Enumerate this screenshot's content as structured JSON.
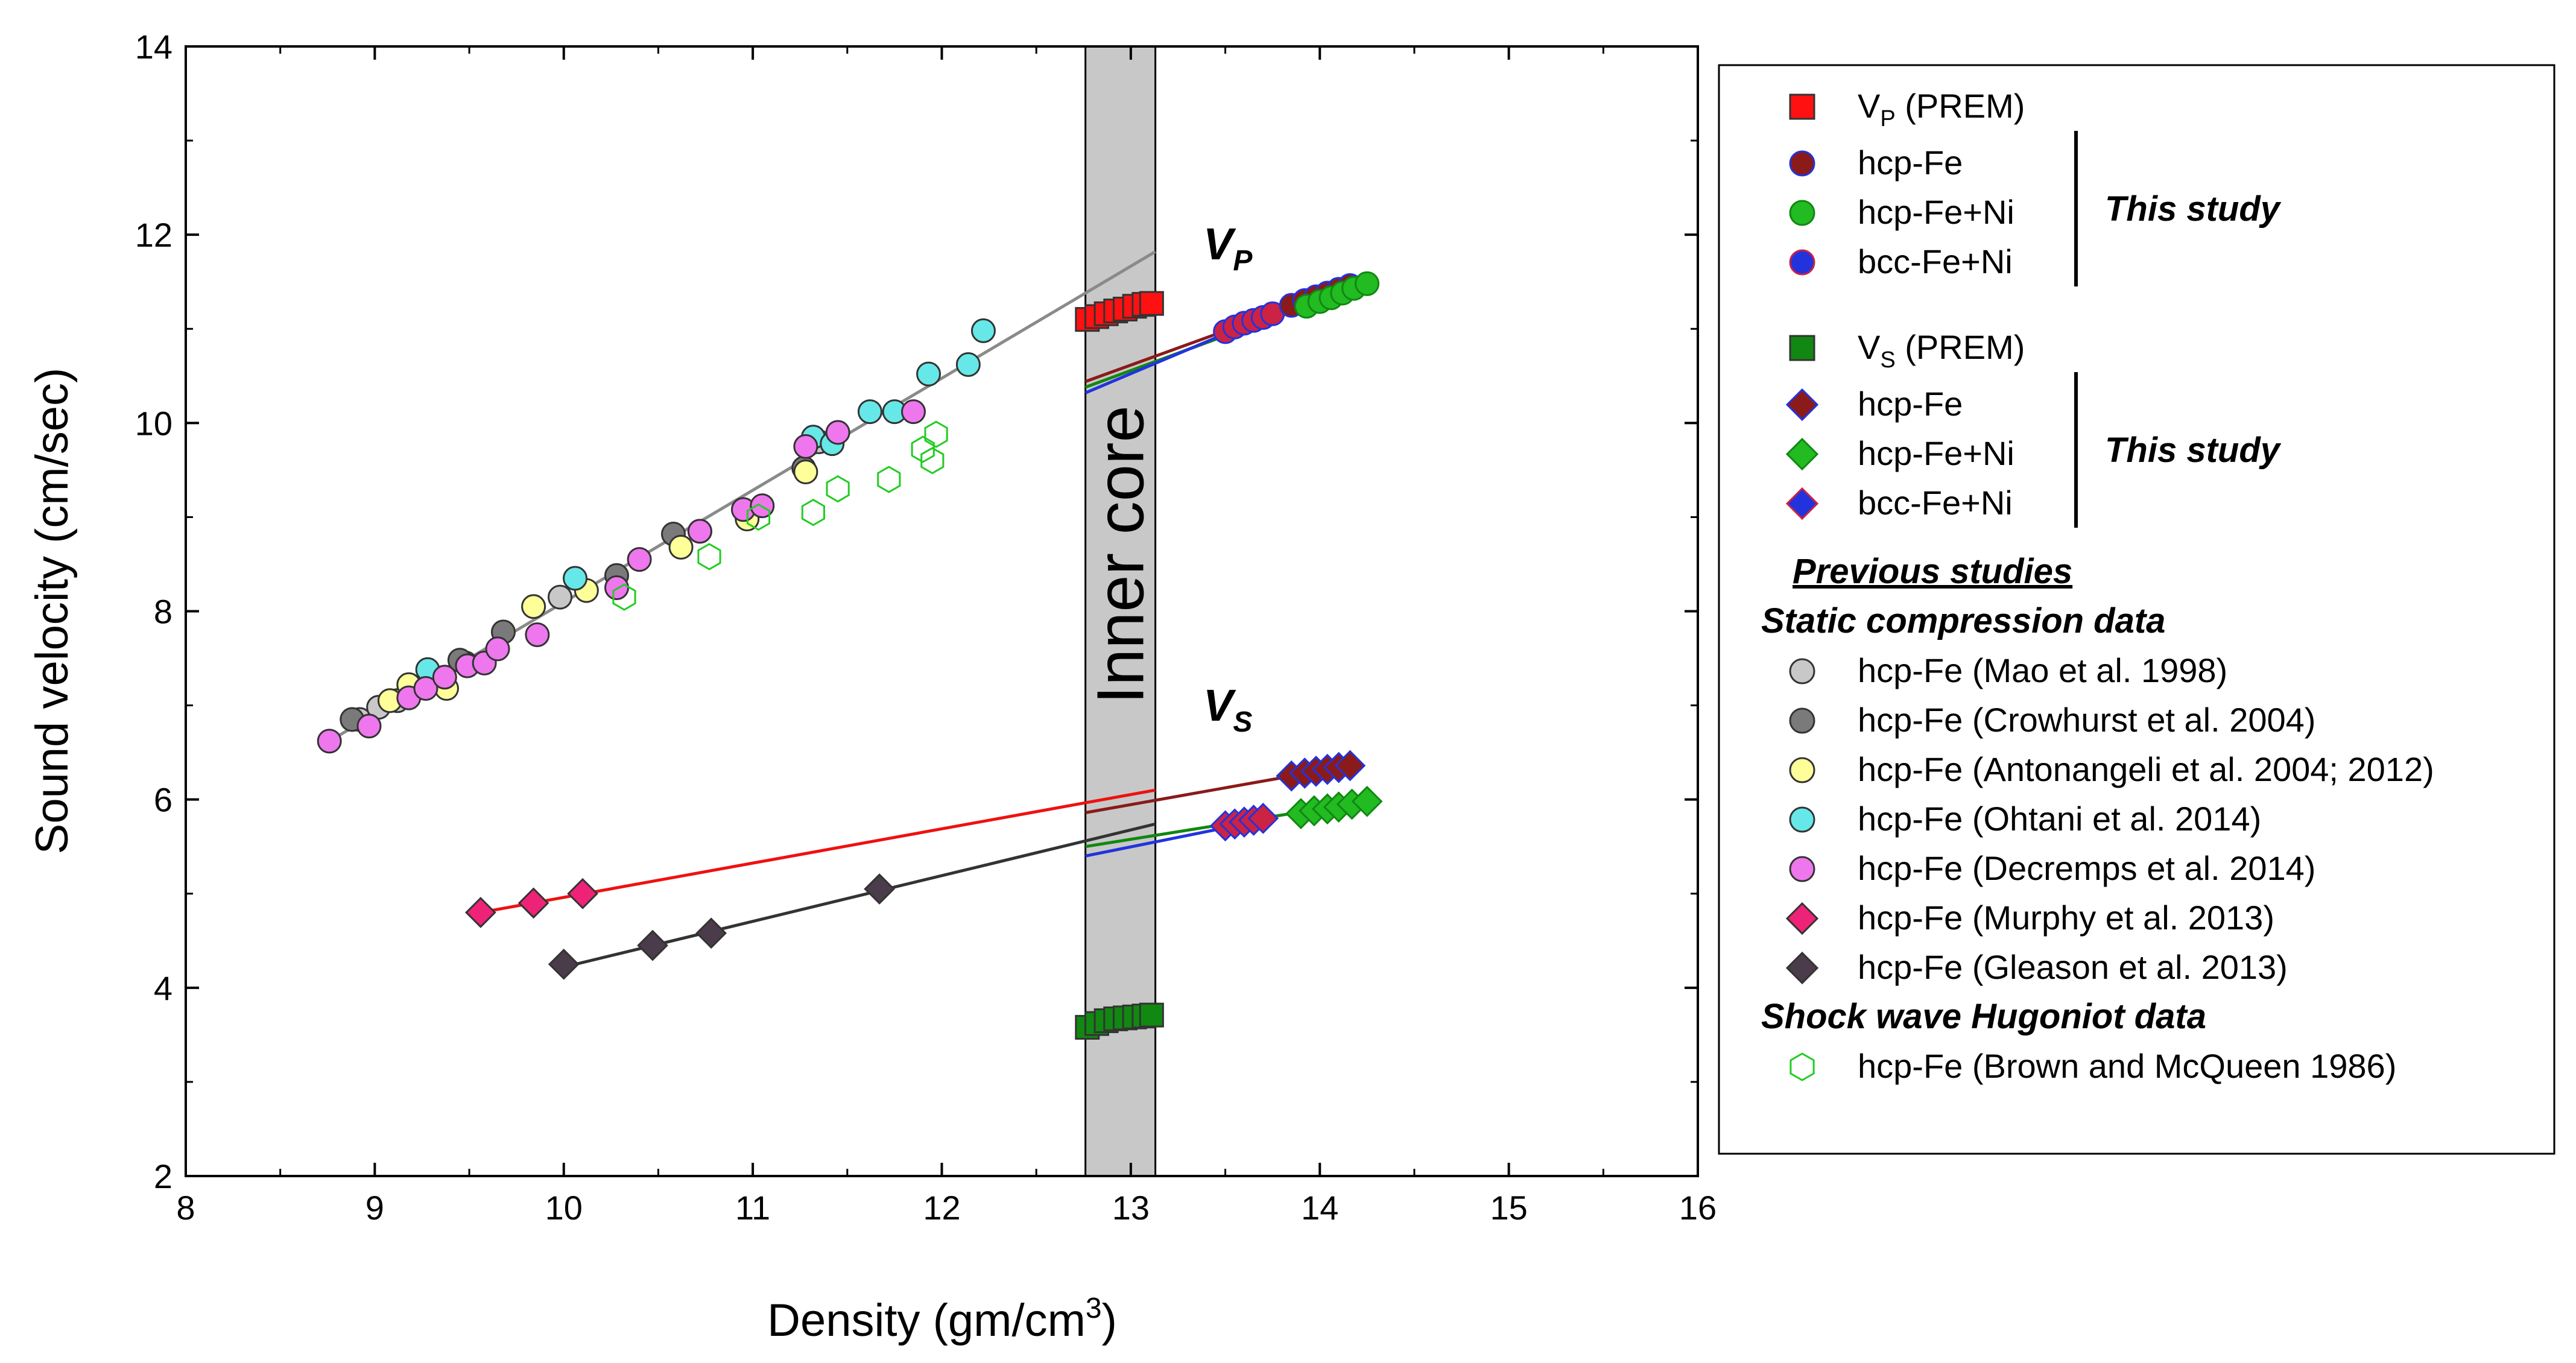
{
  "chart_data": {
    "type": "scatter",
    "xlabel_main": "Density (gm/cm",
    "xlabel_sup": "3",
    "xlabel_end": ")",
    "ylabel": "Sound velocity (cm/sec)",
    "xlim": [
      8,
      16
    ],
    "ylim": [
      2,
      14
    ],
    "xticks": [
      "8",
      "9",
      "10",
      "11",
      "12",
      "13",
      "14",
      "15",
      "16"
    ],
    "yticks": [
      "2",
      "4",
      "6",
      "8",
      "10",
      "12",
      "14"
    ],
    "band": {
      "label": "Inner core",
      "x_range": [
        12.76,
        13.13
      ],
      "color": "#c8c8c8"
    },
    "annotations": {
      "vp": {
        "main": "V",
        "sub": "P"
      },
      "vs": {
        "main": "V",
        "sub": "S"
      }
    },
    "series": [
      {
        "name": "hcp-Fe (Mao et al. 1998)",
        "marker": "circle",
        "fill": "#c8c8c8",
        "points": [
          [
            8.92,
            6.85
          ],
          [
            9.02,
            6.98
          ],
          [
            9.12,
            7.05
          ],
          [
            9.48,
            7.45
          ],
          [
            9.98,
            8.15
          ],
          [
            10.72,
            8.85
          ],
          [
            11.35,
            9.8
          ]
        ]
      },
      {
        "name": "hcp-Fe (Crowhurst et al. 2004)",
        "marker": "circle",
        "fill": "#7a7a7a",
        "points": [
          [
            8.88,
            6.85
          ],
          [
            9.45,
            7.48
          ],
          [
            9.68,
            7.78
          ],
          [
            10.28,
            8.38
          ],
          [
            10.58,
            8.82
          ],
          [
            11.27,
            9.52
          ]
        ]
      },
      {
        "name": "hcp-Fe (Antonangeli et al. 2004; 2012)",
        "marker": "circle",
        "fill": "#ffff99",
        "points": [
          [
            9.08,
            7.05
          ],
          [
            9.18,
            7.22
          ],
          [
            9.38,
            7.18
          ],
          [
            9.84,
            8.05
          ],
          [
            10.12,
            8.22
          ],
          [
            10.62,
            8.68
          ],
          [
            10.97,
            8.98
          ],
          [
            11.28,
            9.48
          ]
        ]
      },
      {
        "name": "hcp-Fe (Ohtani et al. 2014)",
        "marker": "circle",
        "fill": "#66e8e8",
        "points": [
          [
            9.28,
            7.38
          ],
          [
            10.06,
            8.35
          ],
          [
            11.32,
            9.85
          ],
          [
            11.42,
            9.78
          ],
          [
            11.62,
            10.12
          ],
          [
            11.75,
            10.12
          ],
          [
            11.93,
            10.52
          ],
          [
            12.14,
            10.62
          ],
          [
            12.22,
            10.98
          ]
        ]
      },
      {
        "name": "hcp-Fe (Decremps et al. 2014)",
        "marker": "circle",
        "fill": "#ee77ee",
        "points": [
          [
            8.76,
            6.62
          ],
          [
            8.97,
            6.78
          ],
          [
            9.18,
            7.08
          ],
          [
            9.27,
            7.18
          ],
          [
            9.37,
            7.3
          ],
          [
            9.49,
            7.42
          ],
          [
            9.58,
            7.45
          ],
          [
            9.65,
            7.6
          ],
          [
            9.86,
            7.75
          ],
          [
            10.28,
            8.25
          ],
          [
            10.4,
            8.55
          ],
          [
            10.72,
            8.85
          ],
          [
            10.95,
            9.08
          ],
          [
            11.05,
            9.12
          ],
          [
            11.28,
            9.75
          ],
          [
            11.45,
            9.9
          ],
          [
            11.85,
            10.12
          ]
        ]
      },
      {
        "name": "hcp-Fe (Murphy et al. 2013)",
        "marker": "diamond",
        "fill": "#ee2277",
        "points": [
          [
            9.56,
            4.8
          ],
          [
            9.84,
            4.9
          ],
          [
            10.1,
            5.0
          ]
        ]
      },
      {
        "name": "hcp-Fe (Gleason et al. 2013)",
        "marker": "diamond",
        "fill": "#4a3c4a",
        "points": [
          [
            10.0,
            4.25
          ],
          [
            10.47,
            4.45
          ],
          [
            10.78,
            4.58
          ],
          [
            11.67,
            5.05
          ]
        ]
      },
      {
        "name": "hcp-Fe (Brown and McQueen 1986)",
        "marker": "hexagon",
        "fill": "none",
        "stroke": "#22cc22",
        "points": [
          [
            10.32,
            8.15
          ],
          [
            10.77,
            8.58
          ],
          [
            11.03,
            9.0
          ],
          [
            11.32,
            9.05
          ],
          [
            11.45,
            9.3
          ],
          [
            11.72,
            9.4
          ],
          [
            11.9,
            9.72
          ],
          [
            11.95,
            9.6
          ],
          [
            11.97,
            9.88
          ]
        ]
      },
      {
        "name": "V_P (PREM)",
        "marker": "square",
        "fill": "#ff1111",
        "points": [
          [
            12.77,
            11.1
          ],
          [
            12.82,
            11.13
          ],
          [
            12.87,
            11.16
          ],
          [
            12.92,
            11.19
          ],
          [
            12.97,
            11.21
          ],
          [
            13.02,
            11.24
          ],
          [
            13.07,
            11.26
          ],
          [
            13.11,
            11.27
          ]
        ]
      },
      {
        "name": "V_S (PREM)",
        "marker": "square",
        "fill": "#118811",
        "points": [
          [
            12.77,
            3.58
          ],
          [
            12.82,
            3.62
          ],
          [
            12.87,
            3.65
          ],
          [
            12.92,
            3.67
          ],
          [
            12.97,
            3.68
          ],
          [
            13.02,
            3.69
          ],
          [
            13.07,
            3.7
          ],
          [
            13.11,
            3.71
          ]
        ]
      },
      {
        "name": "bcc-Fe+Ni (VP)",
        "marker": "circle",
        "fill": "#cc2244",
        "stroke": "#2233dd",
        "points": [
          [
            13.5,
            10.97
          ],
          [
            13.55,
            11.02
          ],
          [
            13.6,
            11.06
          ],
          [
            13.65,
            11.09
          ],
          [
            13.7,
            11.12
          ],
          [
            13.75,
            11.16
          ]
        ]
      },
      {
        "name": "hcp-Fe (VP)",
        "marker": "circle",
        "fill": "#8b1a1a",
        "stroke": "#2233dd",
        "points": [
          [
            13.85,
            11.25
          ],
          [
            13.92,
            11.3
          ],
          [
            13.98,
            11.34
          ],
          [
            14.04,
            11.38
          ],
          [
            14.1,
            11.42
          ],
          [
            14.16,
            11.46
          ]
        ]
      },
      {
        "name": "hcp-Fe+Ni (VP)",
        "marker": "circle",
        "fill": "#22bb22",
        "stroke": "#118811",
        "points": [
          [
            13.93,
            11.24
          ],
          [
            14.0,
            11.29
          ],
          [
            14.06,
            11.33
          ],
          [
            14.12,
            11.38
          ],
          [
            14.18,
            11.43
          ],
          [
            14.25,
            11.48
          ]
        ]
      },
      {
        "name": "bcc-Fe+Ni (VS)",
        "marker": "diamond",
        "fill": "#cc2244",
        "stroke": "#2233dd",
        "points": [
          [
            13.5,
            5.72
          ],
          [
            13.55,
            5.74
          ],
          [
            13.6,
            5.76
          ],
          [
            13.65,
            5.78
          ],
          [
            13.7,
            5.8
          ]
        ]
      },
      {
        "name": "hcp-Fe (VS)",
        "marker": "diamond",
        "fill": "#8b1a1a",
        "stroke": "#2233dd",
        "points": [
          [
            13.85,
            6.25
          ],
          [
            13.92,
            6.28
          ],
          [
            13.98,
            6.3
          ],
          [
            14.04,
            6.32
          ],
          [
            14.1,
            6.34
          ],
          [
            14.16,
            6.36
          ]
        ]
      },
      {
        "name": "hcp-Fe+Ni (VS)",
        "marker": "diamond",
        "fill": "#22bb22",
        "stroke": "#118811",
        "points": [
          [
            13.9,
            5.85
          ],
          [
            13.97,
            5.88
          ],
          [
            14.04,
            5.9
          ],
          [
            14.1,
            5.92
          ],
          [
            14.17,
            5.95
          ],
          [
            14.25,
            5.98
          ]
        ]
      }
    ],
    "fit_lines": [
      {
        "name": "previous VP fit",
        "color": "#8a8a8a",
        "from": [
          8.76,
          6.62
        ],
        "to": [
          13.13,
          11.82
        ]
      },
      {
        "name": "Murphy VS fit",
        "color": "#ee1111",
        "from": [
          9.56,
          4.8
        ],
        "to": [
          13.13,
          6.1
        ]
      },
      {
        "name": "Gleason VS fit",
        "color": "#333333",
        "from": [
          10.0,
          4.22
        ],
        "to": [
          13.13,
          5.74
        ]
      },
      {
        "name": "hcp-Fe VP fit",
        "color": "#8b1a1a",
        "from": [
          12.76,
          10.44
        ],
        "to": [
          14.16,
          11.46
        ]
      },
      {
        "name": "hcp-Fe+Ni VP fit",
        "color": "#118811",
        "from": [
          12.76,
          10.38
        ],
        "to": [
          14.25,
          11.48
        ]
      },
      {
        "name": "bcc-Fe+Ni VP fit",
        "color": "#2233dd",
        "from": [
          12.76,
          10.32
        ],
        "to": [
          13.75,
          11.16
        ]
      },
      {
        "name": "hcp-Fe VS fit",
        "color": "#8b1a1a",
        "from": [
          12.76,
          5.86
        ],
        "to": [
          14.16,
          6.36
        ]
      },
      {
        "name": "hcp-Fe+Ni VS fit",
        "color": "#118811",
        "from": [
          12.76,
          5.5
        ],
        "to": [
          14.25,
          5.98
        ]
      },
      {
        "name": "bcc-Fe+Ni VS fit",
        "color": "#2233dd",
        "from": [
          12.76,
          5.4
        ],
        "to": [
          13.75,
          5.8
        ]
      }
    ],
    "legend": {
      "position": "right",
      "groups": [
        {
          "rows": [
            {
              "marker": "square",
              "fill": "#ff1111",
              "label_main": "V",
              "label_sub": "P",
              "label_rest": " (PREM)"
            }
          ]
        },
        {
          "bracket": "This study",
          "rows": [
            {
              "marker": "circle",
              "fill": "#8b1a1a",
              "stroke": "#2233dd",
              "label": "hcp-Fe"
            },
            {
              "marker": "circle",
              "fill": "#22bb22",
              "stroke": "#118811",
              "label": "hcp-Fe+Ni"
            },
            {
              "marker": "circle",
              "fill": "#2233dd",
              "stroke": "#cc2244",
              "label": "bcc-Fe+Ni"
            }
          ]
        },
        {
          "rows": [
            {
              "marker": "square",
              "fill": "#118811",
              "label_main": "V",
              "label_sub": "S",
              "label_rest": " (PREM)"
            }
          ]
        },
        {
          "bracket": "This study",
          "rows": [
            {
              "marker": "diamond",
              "fill": "#8b1a1a",
              "stroke": "#2233dd",
              "label": "hcp-Fe"
            },
            {
              "marker": "diamond",
              "fill": "#22bb22",
              "stroke": "#118811",
              "label": "hcp-Fe+Ni"
            },
            {
              "marker": "diamond",
              "fill": "#2233dd",
              "stroke": "#cc2244",
              "label": "bcc-Fe+Ni"
            }
          ]
        }
      ],
      "previous_heading": "Previous studies",
      "static_heading": "Static compression data",
      "static_rows": [
        {
          "marker": "circle",
          "fill": "#c8c8c8",
          "label": "hcp-Fe (Mao et al. 1998)"
        },
        {
          "marker": "circle",
          "fill": "#7a7a7a",
          "label": "hcp-Fe (Crowhurst et al. 2004)"
        },
        {
          "marker": "circle",
          "fill": "#ffff99",
          "label": "hcp-Fe (Antonangeli et al. 2004; 2012)"
        },
        {
          "marker": "circle",
          "fill": "#66e8e8",
          "label": "hcp-Fe (Ohtani et al. 2014)"
        },
        {
          "marker": "circle",
          "fill": "#ee77ee",
          "label": "hcp-Fe (Decremps et al. 2014)"
        },
        {
          "marker": "diamond",
          "fill": "#ee2277",
          "label": "hcp-Fe (Murphy et al. 2013)"
        },
        {
          "marker": "diamond",
          "fill": "#4a3c4a",
          "label": "hcp-Fe (Gleason et al. 2013)"
        }
      ],
      "shock_heading": "Shock wave Hugoniot data",
      "shock_rows": [
        {
          "marker": "hexagon",
          "fill": "none",
          "stroke": "#22cc22",
          "label": "hcp-Fe (Brown and McQueen 1986)"
        }
      ]
    }
  }
}
